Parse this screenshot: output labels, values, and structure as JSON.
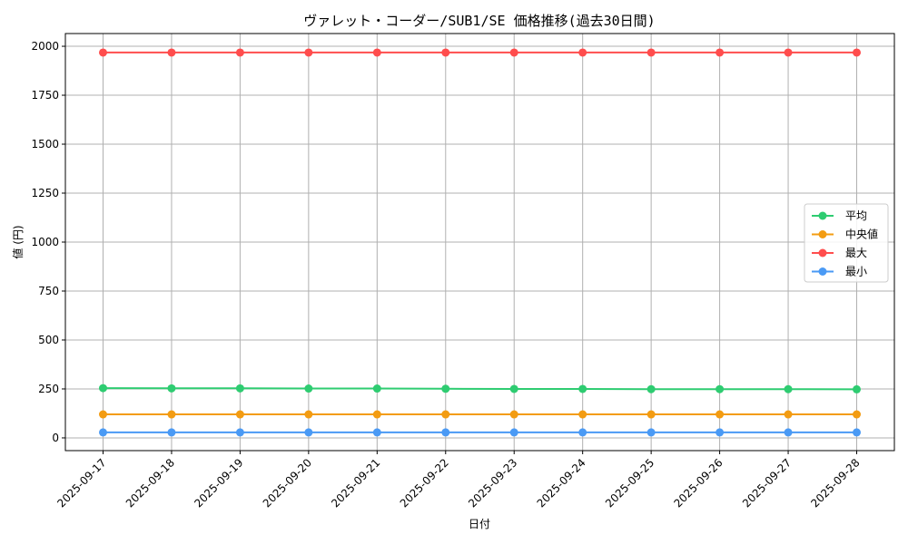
{
  "chart_data": {
    "type": "line",
    "title": "ヴァレット・コーダー/SUB1/SE 価格推移(過去30日間)",
    "xlabel": "日付",
    "ylabel": "値 (円)",
    "ylim": [
      -65,
      2065
    ],
    "yticks": [
      0,
      250,
      500,
      750,
      1000,
      1250,
      1500,
      1750,
      2000
    ],
    "grid": true,
    "legend_position": "center-right",
    "categories": [
      "2025-09-17",
      "2025-09-18",
      "2025-09-19",
      "2025-09-20",
      "2025-09-21",
      "2025-09-22",
      "2025-09-23",
      "2025-09-24",
      "2025-09-25",
      "2025-09-26",
      "2025-09-27",
      "2025-09-28"
    ],
    "series": [
      {
        "name": "平均",
        "color": "#2ecc71",
        "values": [
          254,
          253,
          253,
          252,
          252,
          251,
          250,
          250,
          249,
          249,
          249,
          248
        ]
      },
      {
        "name": "中央値",
        "color": "#f39c12",
        "values": [
          120,
          120,
          120,
          120,
          120,
          120,
          120,
          120,
          120,
          120,
          120,
          120
        ]
      },
      {
        "name": "最大",
        "color": "#ff4d4d",
        "values": [
          1968,
          1968,
          1968,
          1968,
          1968,
          1968,
          1968,
          1968,
          1968,
          1968,
          1968,
          1968
        ]
      },
      {
        "name": "最小",
        "color": "#4a9af5",
        "values": [
          28,
          28,
          28,
          28,
          28,
          28,
          28,
          28,
          28,
          28,
          28,
          28
        ]
      }
    ]
  }
}
